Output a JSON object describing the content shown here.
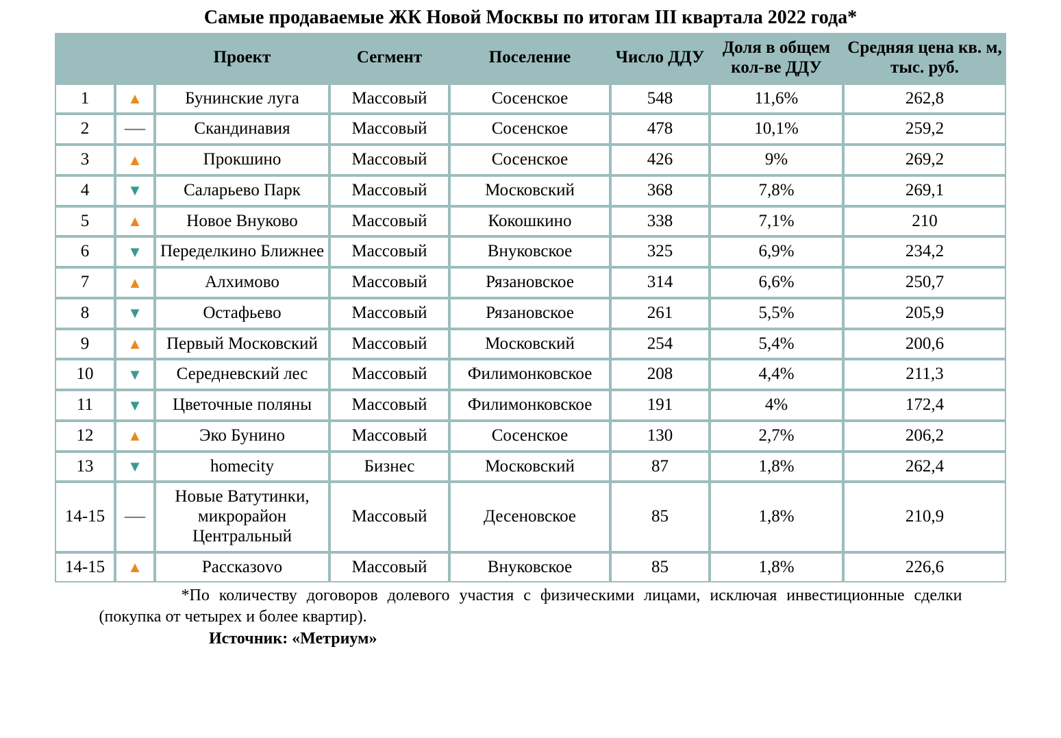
{
  "title": "Самые продаваемые ЖК Новой Москвы по итогам III квартала 2022 года*",
  "columns": {
    "rank": "",
    "trend": "",
    "project": "Проект",
    "segment": "Сегмент",
    "settlement": "Поселение",
    "ddu": "Число ДДУ",
    "share": "Доля в общем кол-ве ДДУ",
    "price": "Средняя цена кв. м,\nтыс. руб."
  },
  "trend_glyphs": {
    "up": "▲",
    "down": "▼",
    "same": "—"
  },
  "trend_colors": {
    "up": "#e88a24",
    "down": "#3b9a8f",
    "same": "#808080"
  },
  "header_bg": "#9cbdbd",
  "border_color": "#9cbdbd",
  "rows": [
    {
      "rank": "1",
      "trend": "up",
      "project": "Бунинские луга",
      "segment": "Массовый",
      "settlement": "Сосенское",
      "ddu": "548",
      "share": "11,6%",
      "price": "262,8"
    },
    {
      "rank": "2",
      "trend": "same",
      "project": "Скандинавия",
      "segment": "Массовый",
      "settlement": "Сосенское",
      "ddu": "478",
      "share": "10,1%",
      "price": "259,2"
    },
    {
      "rank": "3",
      "trend": "up",
      "project": "Прокшино",
      "segment": "Массовый",
      "settlement": "Сосенское",
      "ddu": "426",
      "share": "9%",
      "price": "269,2"
    },
    {
      "rank": "4",
      "trend": "down",
      "project": "Саларьево Парк",
      "segment": "Массовый",
      "settlement": "Московский",
      "ddu": "368",
      "share": "7,8%",
      "price": "269,1"
    },
    {
      "rank": "5",
      "trend": "up",
      "project": "Новое Внуково",
      "segment": "Массовый",
      "settlement": "Кокошкино",
      "ddu": "338",
      "share": "7,1%",
      "price": "210"
    },
    {
      "rank": "6",
      "trend": "down",
      "project": "Переделкино Ближнее",
      "segment": "Массовый",
      "settlement": "Внуковское",
      "ddu": "325",
      "share": "6,9%",
      "price": "234,2"
    },
    {
      "rank": "7",
      "trend": "up",
      "project": "Алхимово",
      "segment": "Массовый",
      "settlement": "Рязановское",
      "ddu": "314",
      "share": "6,6%",
      "price": "250,7"
    },
    {
      "rank": "8",
      "trend": "down",
      "project": "Остафьево",
      "segment": "Массовый",
      "settlement": "Рязановское",
      "ddu": "261",
      "share": "5,5%",
      "price": "205,9"
    },
    {
      "rank": "9",
      "trend": "up",
      "project": "Первый Московский",
      "segment": "Массовый",
      "settlement": "Московский",
      "ddu": "254",
      "share": "5,4%",
      "price": "200,6"
    },
    {
      "rank": "10",
      "trend": "down",
      "project": "Середневский лес",
      "segment": "Массовый",
      "settlement": "Филимонковское",
      "ddu": "208",
      "share": "4,4%",
      "price": "211,3"
    },
    {
      "rank": "11",
      "trend": "down",
      "project": "Цветочные поляны",
      "segment": "Массовый",
      "settlement": "Филимонковское",
      "ddu": "191",
      "share": "4%",
      "price": "172,4"
    },
    {
      "rank": "12",
      "trend": "up",
      "project": "Эко Бунино",
      "segment": "Массовый",
      "settlement": "Сосенское",
      "ddu": "130",
      "share": "2,7%",
      "price": "206,2"
    },
    {
      "rank": "13",
      "trend": "down",
      "project": "homecity",
      "segment": "Бизнес",
      "settlement": "Московский",
      "ddu": "87",
      "share": "1,8%",
      "price": "262,4"
    },
    {
      "rank": "14-15",
      "trend": "same",
      "project": "Новые Ватутинки, микрорайон Центральный",
      "segment": "Массовый",
      "settlement": "Десеновское",
      "ddu": "85",
      "share": "1,8%",
      "price": "210,9"
    },
    {
      "rank": "14-15",
      "trend": "up",
      "project": "Рассказоvо",
      "segment": "Массовый",
      "settlement": "Внуковское",
      "ddu": "85",
      "share": "1,8%",
      "price": "226,6"
    }
  ],
  "footnote": "*По количеству договоров долевого участия с физическими лицами, исключая инвестиционные сделки (покупка от четырех и более квартир).",
  "source": "Источник: «Метриум»"
}
